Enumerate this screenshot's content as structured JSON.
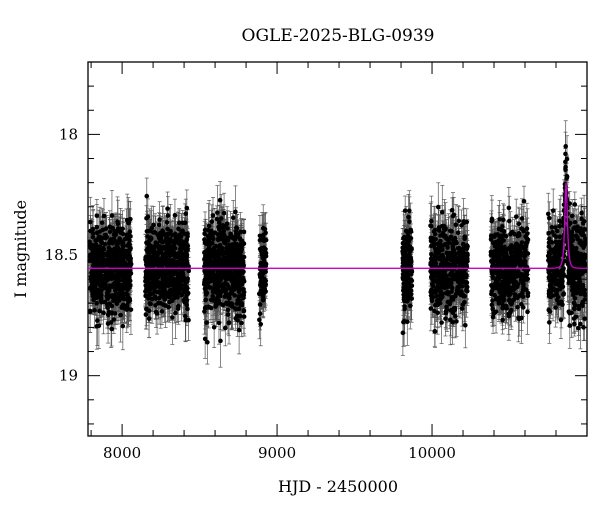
{
  "chart_data": {
    "type": "scatter",
    "title": "OGLE-2025-BLG-0939",
    "xlabel": "HJD - 2450000",
    "ylabel": "I magnitude",
    "xlim": [
      7780,
      11000
    ],
    "ylim": [
      19.25,
      17.7
    ],
    "y_inverted": true,
    "grid": false,
    "legend": "none",
    "xticks": [
      8000,
      9000,
      10000
    ],
    "xtick_labels": [
      "8000",
      "9000",
      "10000"
    ],
    "yticks": [
      18.0,
      18.5,
      19.0
    ],
    "ytick_labels": [
      "18",
      "18.5",
      "19"
    ],
    "x_minor_step": 200,
    "y_minor_step": 0.1,
    "point_color": "#000000",
    "errorbar_color": "#555555",
    "model_color": "#cc00cc",
    "series": [
      {
        "kind": "photometry",
        "points_per_day": 2.2,
        "baseline_mag": 18.555,
        "scatter_mag": 0.09,
        "typical_error_mag": 0.08,
        "seasons": [
          {
            "x_start": 7790,
            "x_end": 8060,
            "n_points": 560
          },
          {
            "x_start": 8150,
            "x_end": 8430,
            "n_points": 600
          },
          {
            "x_start": 8530,
            "x_end": 8790,
            "n_points": 600
          },
          {
            "x_start": 8885,
            "x_end": 8930,
            "n_points": 90
          },
          {
            "x_start": 9810,
            "x_end": 9870,
            "n_points": 180
          },
          {
            "x_start": 9990,
            "x_end": 10230,
            "n_points": 420
          },
          {
            "x_start": 10380,
            "x_end": 10620,
            "n_points": 440
          },
          {
            "x_start": 10750,
            "x_end": 10990,
            "n_points": 460
          }
        ]
      },
      {
        "kind": "model",
        "baseline_mag": 18.555,
        "peak_x": 10865,
        "peak_mag": 18.2,
        "tE_days": 12
      }
    ]
  }
}
